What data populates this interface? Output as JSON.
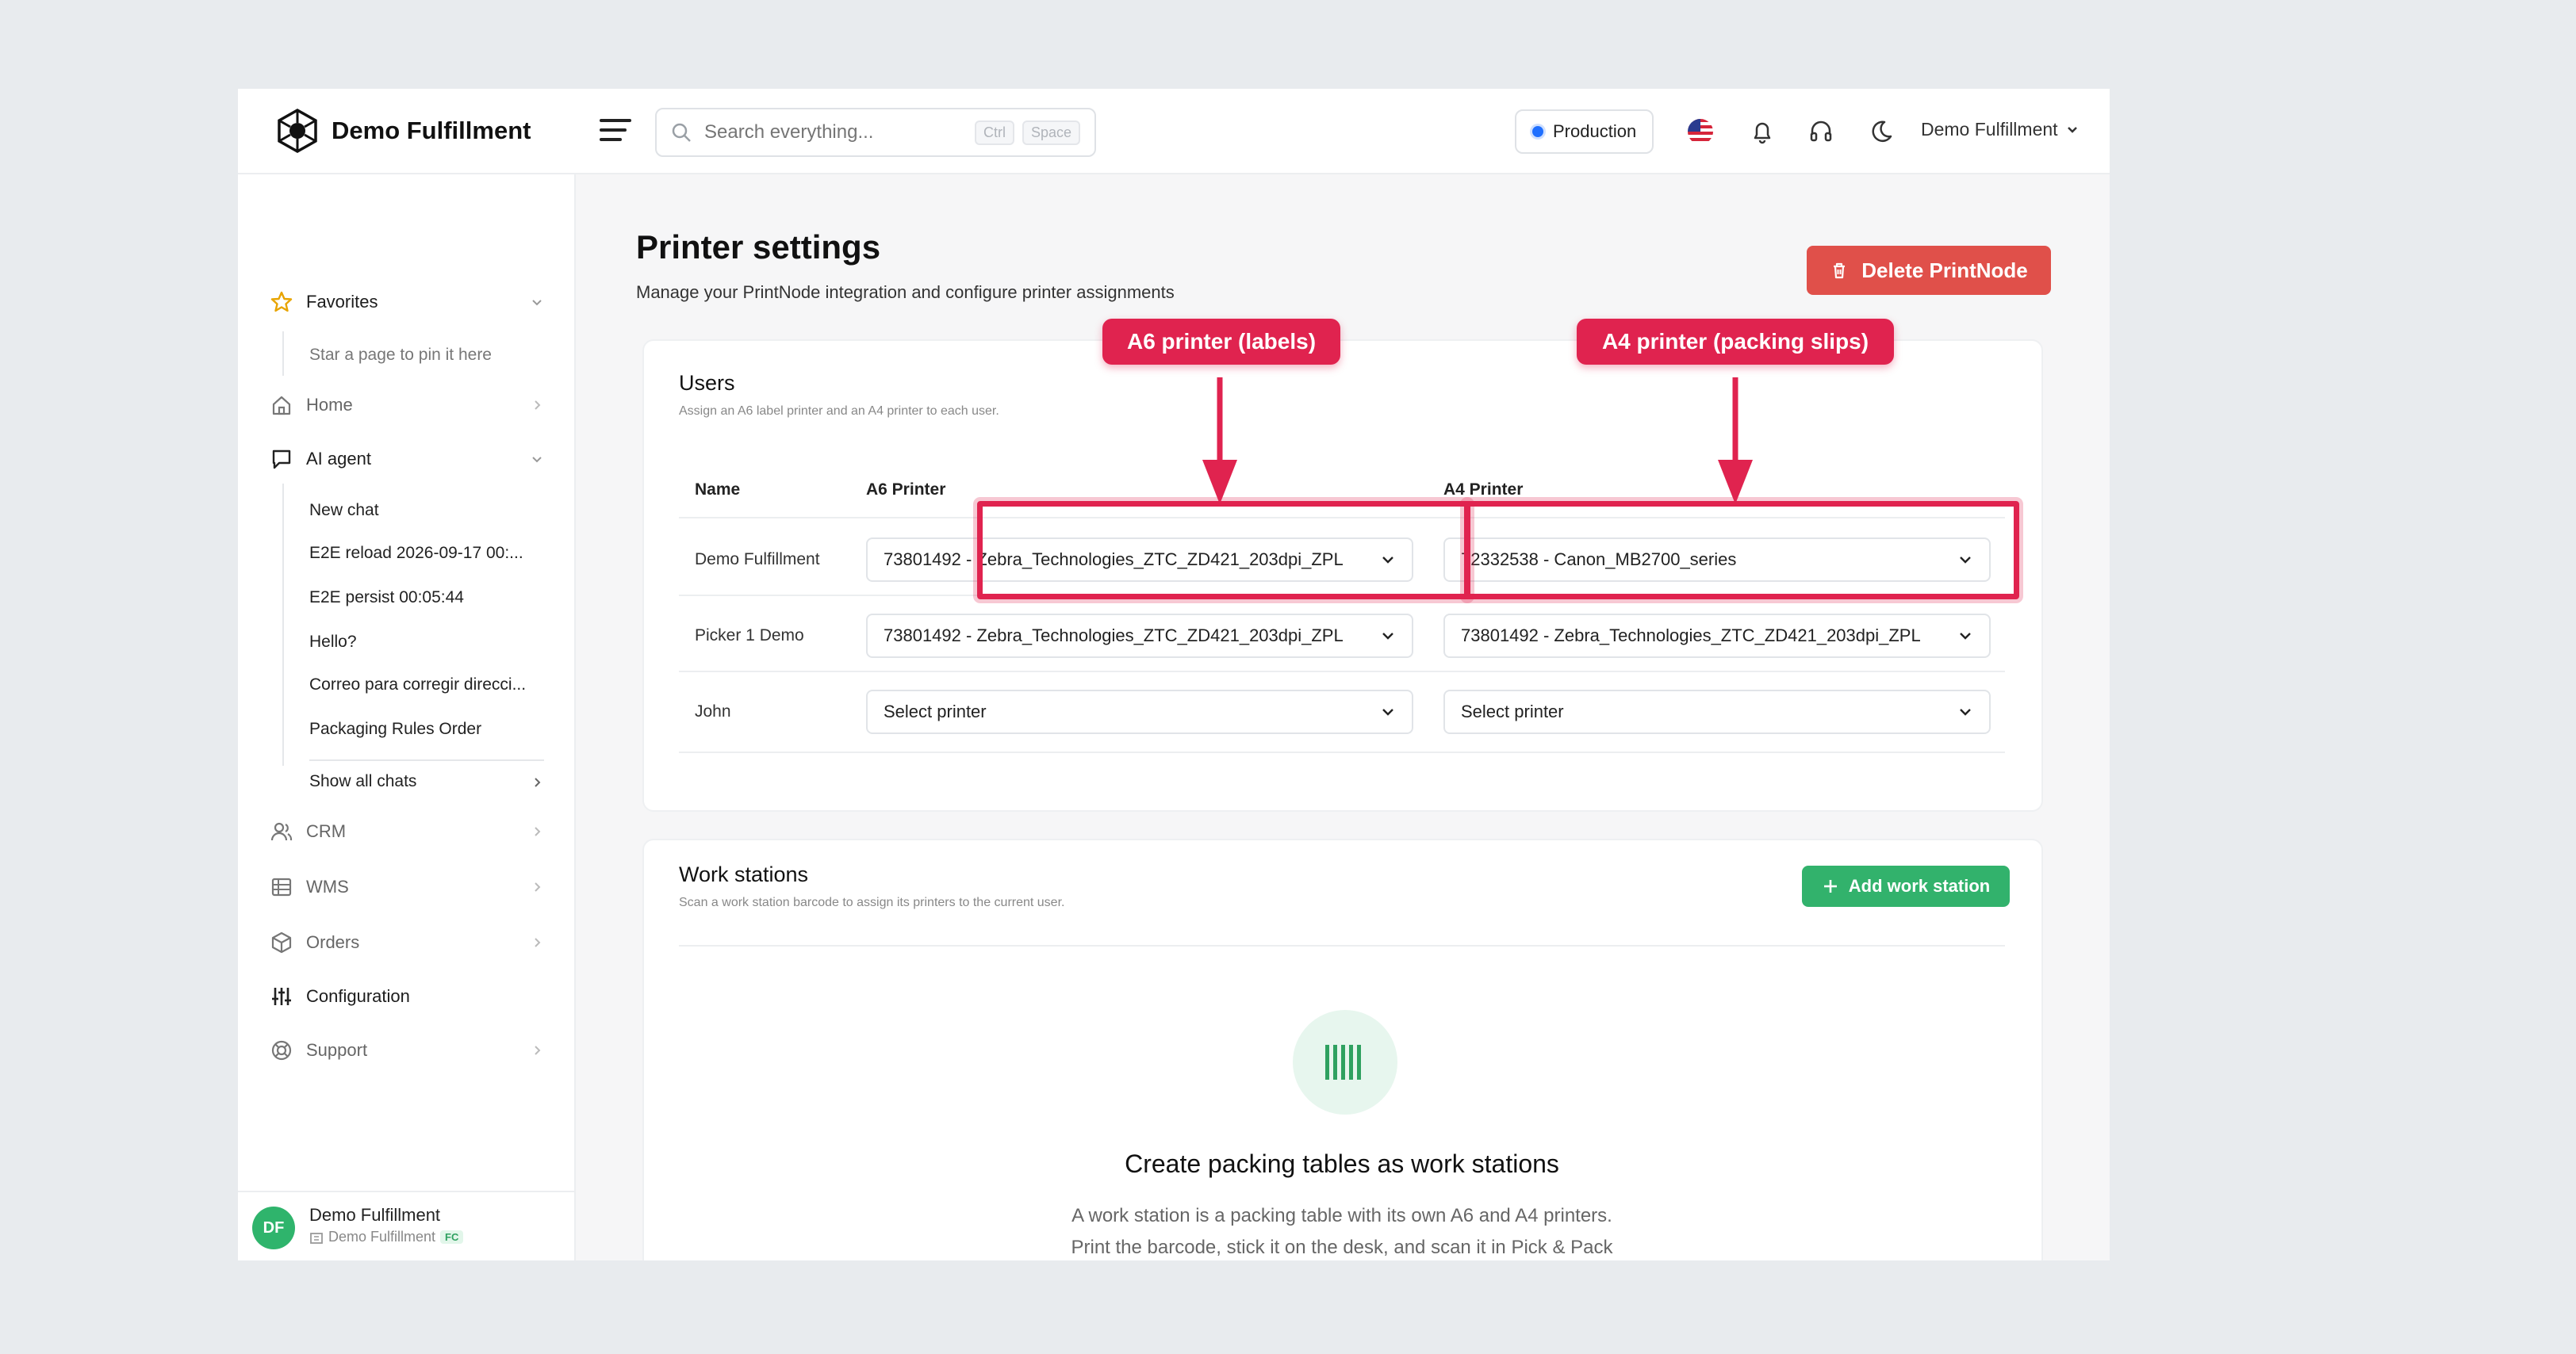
{
  "app": {
    "brand": "Demo Fulfillment",
    "search_placeholder": "Search everything...",
    "kbd_ctrl": "Ctrl",
    "kbd_space": "Space",
    "environment": "Production",
    "user_menu": "Demo Fulfillment"
  },
  "sidebar": {
    "favorites": "Favorites",
    "favorites_hint": "Star a page to pin it here",
    "home": "Home",
    "ai_agent": "AI agent",
    "chats": [
      "New chat",
      "E2E reload 2026-09-17 00:...",
      "E2E persist 00:05:44",
      "Hello?",
      "Correo para corregir direcci...",
      "Packaging Rules Order"
    ],
    "show_all_chats": "Show all chats",
    "crm": "CRM",
    "wms": "WMS",
    "orders": "Orders",
    "configuration": "Configuration",
    "support": "Support",
    "footer_initials": "DF",
    "footer_name": "Demo Fulfillment",
    "footer_org": "Demo Fulfillment",
    "footer_badge": "FC"
  },
  "page": {
    "title": "Printer settings",
    "subtitle": "Manage your PrintNode integration and configure printer assignments",
    "delete_button": "Delete PrintNode"
  },
  "users_card": {
    "title": "Users",
    "subtitle": "Assign an A6 label printer and an A4 printer to each user.",
    "col_name": "Name",
    "col_a6": "A6 Printer",
    "col_a4": "A4 Printer",
    "rows": [
      {
        "name": "Demo Fulfillment",
        "a6": "73801492 - Zebra_Technologies_ZTC_ZD421_203dpi_ZPL",
        "a4": "72332538 - Canon_MB2700_series"
      },
      {
        "name": "Picker 1 Demo",
        "a6": "73801492 - Zebra_Technologies_ZTC_ZD421_203dpi_ZPL",
        "a4": "73801492 - Zebra_Technologies_ZTC_ZD421_203dpi_ZPL"
      },
      {
        "name": "John",
        "a6": "Select printer",
        "a4": "Select printer"
      }
    ]
  },
  "workstations_card": {
    "title": "Work stations",
    "subtitle": "Scan a work station barcode to assign its printers to the current user.",
    "add_button": "Add work station",
    "empty_title": "Create packing tables as work stations",
    "empty_line1": "A work station is a packing table with its own A6 and A4 printers.",
    "empty_line2": "Print the barcode, stick it on the desk, and scan it in Pick & Pack"
  },
  "annotations": {
    "a6_label": "A6 printer (labels)",
    "a4_label": "A4 printer (packing slips)",
    "color": "#e0234f"
  }
}
